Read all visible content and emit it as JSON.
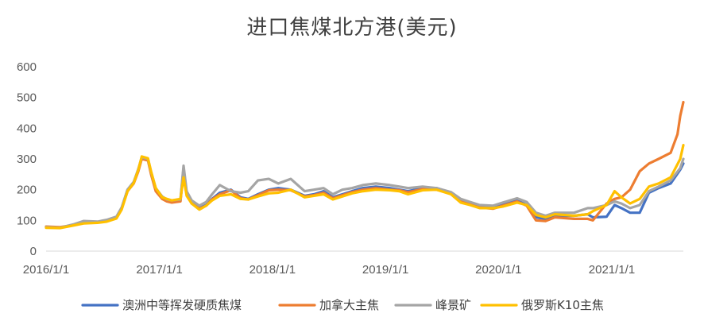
{
  "chart_data": {
    "type": "line",
    "title": "进口焦煤北方港(美元)",
    "xlabel": "",
    "ylabel": "",
    "ylim": [
      0,
      600
    ],
    "yticks": [
      0,
      100,
      200,
      300,
      400,
      500,
      600
    ],
    "xticks": [
      "2016/1/1",
      "2017/1/1",
      "2018/1/1",
      "2019/1/1",
      "2020/1/1",
      "2021/1/1"
    ],
    "x_range": [
      "2016-01-01",
      "2021-08-20"
    ],
    "grid": false,
    "legend_position": "bottom",
    "series": [
      {
        "name": "澳洲中等挥发硬质焦煤",
        "color": "#4472C4",
        "points": [
          [
            "2016-01-01",
            78
          ],
          [
            "2016-02-15",
            76
          ],
          [
            "2016-04-01",
            85
          ],
          [
            "2016-05-01",
            97
          ],
          [
            "2016-06-15",
            95
          ],
          [
            "2016-07-15",
            100
          ],
          [
            "2016-08-15",
            110
          ],
          [
            "2016-09-01",
            140
          ],
          [
            "2016-09-20",
            200
          ],
          [
            "2016-10-10",
            225
          ],
          [
            "2016-10-25",
            265
          ],
          [
            "2016-11-05",
            305
          ],
          [
            "2016-11-25",
            300
          ],
          [
            "2016-12-05",
            255
          ],
          [
            "2016-12-20",
            200
          ],
          [
            "2017-01-10",
            175
          ],
          [
            "2017-01-25",
            165
          ],
          [
            "2017-02-10",
            160
          ],
          [
            "2017-03-10",
            165
          ],
          [
            "2017-03-20",
            270
          ],
          [
            "2017-03-30",
            190
          ],
          [
            "2017-04-15",
            160
          ],
          [
            "2017-05-10",
            140
          ],
          [
            "2017-06-01",
            150
          ],
          [
            "2017-06-20",
            170
          ],
          [
            "2017-07-15",
            190
          ],
          [
            "2017-08-20",
            200
          ],
          [
            "2017-09-20",
            175
          ],
          [
            "2017-10-15",
            170
          ],
          [
            "2017-11-15",
            185
          ],
          [
            "2017-12-20",
            200
          ],
          [
            "2018-01-20",
            205
          ],
          [
            "2018-03-01",
            200
          ],
          [
            "2018-04-15",
            180
          ],
          [
            "2018-05-15",
            185
          ],
          [
            "2018-06-15",
            195
          ],
          [
            "2018-07-15",
            175
          ],
          [
            "2018-08-15",
            185
          ],
          [
            "2018-09-15",
            195
          ],
          [
            "2018-10-20",
            205
          ],
          [
            "2018-12-01",
            210
          ],
          [
            "2019-01-15",
            205
          ],
          [
            "2019-02-15",
            200
          ],
          [
            "2019-03-15",
            195
          ],
          [
            "2019-05-01",
            205
          ],
          [
            "2019-06-15",
            205
          ],
          [
            "2019-08-01",
            190
          ],
          [
            "2019-09-01",
            165
          ],
          [
            "2019-10-01",
            155
          ],
          [
            "2019-11-01",
            145
          ],
          [
            "2019-12-15",
            140
          ],
          [
            "2020-01-15",
            150
          ],
          [
            "2020-03-01",
            165
          ],
          [
            "2020-04-01",
            150
          ],
          [
            "2020-05-01",
            110
          ],
          [
            "2020-06-01",
            105
          ],
          [
            "2020-07-01",
            115
          ],
          [
            "2020-09-01",
            115
          ],
          [
            "2020-10-15",
            120
          ],
          [
            "2020-11-01",
            110
          ],
          [
            "2020-12-15",
            112
          ],
          [
            "2021-01-10",
            150
          ],
          [
            "2021-02-01",
            140
          ],
          [
            "2021-03-01",
            125
          ],
          [
            "2021-04-01",
            125
          ],
          [
            "2021-05-01",
            190
          ],
          [
            "2021-06-01",
            205
          ],
          [
            "2021-07-10",
            220
          ],
          [
            "2021-08-10",
            265
          ],
          [
            "2021-08-20",
            285
          ]
        ]
      },
      {
        "name": "加拿大主焦",
        "color": "#ED7D31",
        "points": [
          [
            "2016-01-01",
            80
          ],
          [
            "2016-02-15",
            78
          ],
          [
            "2016-04-01",
            85
          ],
          [
            "2016-05-01",
            95
          ],
          [
            "2016-06-15",
            93
          ],
          [
            "2016-07-15",
            98
          ],
          [
            "2016-08-15",
            108
          ],
          [
            "2016-09-01",
            138
          ],
          [
            "2016-09-20",
            195
          ],
          [
            "2016-10-10",
            220
          ],
          [
            "2016-10-25",
            260
          ],
          [
            "2016-11-05",
            300
          ],
          [
            "2016-11-25",
            295
          ],
          [
            "2016-12-05",
            250
          ],
          [
            "2016-12-20",
            195
          ],
          [
            "2017-01-10",
            170
          ],
          [
            "2017-01-25",
            162
          ],
          [
            "2017-02-10",
            158
          ],
          [
            "2017-03-10",
            162
          ],
          [
            "2017-03-20",
            260
          ],
          [
            "2017-03-30",
            185
          ],
          [
            "2017-04-15",
            155
          ],
          [
            "2017-05-10",
            138
          ],
          [
            "2017-06-01",
            148
          ],
          [
            "2017-06-20",
            168
          ],
          [
            "2017-07-15",
            185
          ],
          [
            "2017-08-20",
            198
          ],
          [
            "2017-09-20",
            172
          ],
          [
            "2017-10-15",
            168
          ],
          [
            "2017-11-15",
            182
          ],
          [
            "2017-12-20",
            198
          ],
          [
            "2018-01-20",
            200
          ],
          [
            "2018-03-01",
            198
          ],
          [
            "2018-04-15",
            178
          ],
          [
            "2018-05-15",
            182
          ],
          [
            "2018-06-15",
            190
          ],
          [
            "2018-07-15",
            172
          ],
          [
            "2018-08-15",
            182
          ],
          [
            "2018-09-15",
            192
          ],
          [
            "2018-10-20",
            200
          ],
          [
            "2018-12-01",
            205
          ],
          [
            "2019-01-15",
            200
          ],
          [
            "2019-02-15",
            198
          ],
          [
            "2019-03-15",
            192
          ],
          [
            "2019-05-01",
            202
          ],
          [
            "2019-06-15",
            200
          ],
          [
            "2019-08-01",
            188
          ],
          [
            "2019-09-01",
            162
          ],
          [
            "2019-10-01",
            152
          ],
          [
            "2019-11-01",
            142
          ],
          [
            "2019-12-15",
            138
          ],
          [
            "2020-01-15",
            148
          ],
          [
            "2020-03-01",
            162
          ],
          [
            "2020-04-01",
            148
          ],
          [
            "2020-05-01",
            100
          ],
          [
            "2020-06-01",
            98
          ],
          [
            "2020-07-01",
            110
          ],
          [
            "2020-09-01",
            105
          ],
          [
            "2020-10-15",
            105
          ],
          [
            "2020-11-01",
            100
          ],
          [
            "2020-12-15",
            155
          ],
          [
            "2021-01-10",
            170
          ],
          [
            "2021-02-01",
            175
          ],
          [
            "2021-03-01",
            200
          ],
          [
            "2021-04-01",
            260
          ],
          [
            "2021-05-01",
            285
          ],
          [
            "2021-06-01",
            300
          ],
          [
            "2021-07-10",
            320
          ],
          [
            "2021-08-01",
            380
          ],
          [
            "2021-08-10",
            440
          ],
          [
            "2021-08-20",
            485
          ]
        ]
      },
      {
        "name": "峰景矿",
        "color": "#A5A5A5",
        "points": [
          [
            "2016-01-01",
            78
          ],
          [
            "2016-02-15",
            76
          ],
          [
            "2016-04-01",
            88
          ],
          [
            "2016-05-01",
            98
          ],
          [
            "2016-06-15",
            96
          ],
          [
            "2016-07-15",
            102
          ],
          [
            "2016-08-15",
            112
          ],
          [
            "2016-09-01",
            142
          ],
          [
            "2016-09-20",
            200
          ],
          [
            "2016-10-10",
            225
          ],
          [
            "2016-10-25",
            268
          ],
          [
            "2016-11-05",
            305
          ],
          [
            "2016-11-25",
            300
          ],
          [
            "2016-12-05",
            258
          ],
          [
            "2016-12-20",
            205
          ],
          [
            "2017-01-10",
            178
          ],
          [
            "2017-01-25",
            168
          ],
          [
            "2017-02-10",
            165
          ],
          [
            "2017-03-10",
            168
          ],
          [
            "2017-03-20",
            278
          ],
          [
            "2017-03-30",
            195
          ],
          [
            "2017-04-15",
            165
          ],
          [
            "2017-05-10",
            148
          ],
          [
            "2017-06-01",
            160
          ],
          [
            "2017-06-20",
            185
          ],
          [
            "2017-07-15",
            215
          ],
          [
            "2017-08-20",
            195
          ],
          [
            "2017-09-20",
            190
          ],
          [
            "2017-10-15",
            195
          ],
          [
            "2017-11-15",
            230
          ],
          [
            "2017-12-20",
            235
          ],
          [
            "2018-01-20",
            220
          ],
          [
            "2018-03-01",
            235
          ],
          [
            "2018-04-15",
            195
          ],
          [
            "2018-05-15",
            200
          ],
          [
            "2018-06-15",
            205
          ],
          [
            "2018-07-15",
            185
          ],
          [
            "2018-08-15",
            200
          ],
          [
            "2018-09-15",
            205
          ],
          [
            "2018-10-20",
            215
          ],
          [
            "2018-12-01",
            220
          ],
          [
            "2019-01-15",
            215
          ],
          [
            "2019-02-15",
            210
          ],
          [
            "2019-03-15",
            205
          ],
          [
            "2019-05-01",
            210
          ],
          [
            "2019-06-15",
            205
          ],
          [
            "2019-08-01",
            192
          ],
          [
            "2019-09-01",
            170
          ],
          [
            "2019-10-01",
            160
          ],
          [
            "2019-11-01",
            150
          ],
          [
            "2019-12-15",
            148
          ],
          [
            "2020-01-15",
            158
          ],
          [
            "2020-03-01",
            172
          ],
          [
            "2020-04-01",
            160
          ],
          [
            "2020-05-01",
            125
          ],
          [
            "2020-06-01",
            115
          ],
          [
            "2020-07-01",
            125
          ],
          [
            "2020-09-01",
            125
          ],
          [
            "2020-10-15",
            140
          ],
          [
            "2020-11-01",
            140
          ],
          [
            "2020-12-15",
            150
          ],
          [
            "2021-01-10",
            162
          ],
          [
            "2021-02-01",
            155
          ],
          [
            "2021-03-01",
            140
          ],
          [
            "2021-04-01",
            150
          ],
          [
            "2021-05-01",
            195
          ],
          [
            "2021-06-01",
            210
          ],
          [
            "2021-07-10",
            230
          ],
          [
            "2021-08-10",
            270
          ],
          [
            "2021-08-20",
            300
          ]
        ]
      },
      {
        "name": "俄罗斯K10主焦",
        "color": "#FFC000",
        "points": [
          [
            "2016-01-01",
            76
          ],
          [
            "2016-02-15",
            75
          ],
          [
            "2016-04-01",
            84
          ],
          [
            "2016-05-01",
            90
          ],
          [
            "2016-06-15",
            92
          ],
          [
            "2016-07-15",
            96
          ],
          [
            "2016-08-15",
            106
          ],
          [
            "2016-09-01",
            135
          ],
          [
            "2016-09-20",
            195
          ],
          [
            "2016-10-10",
            222
          ],
          [
            "2016-10-25",
            265
          ],
          [
            "2016-11-05",
            308
          ],
          [
            "2016-11-25",
            302
          ],
          [
            "2016-12-05",
            260
          ],
          [
            "2016-12-20",
            205
          ],
          [
            "2017-01-10",
            175
          ],
          [
            "2017-01-25",
            170
          ],
          [
            "2017-02-10",
            165
          ],
          [
            "2017-03-10",
            170
          ],
          [
            "2017-03-20",
            240
          ],
          [
            "2017-03-30",
            180
          ],
          [
            "2017-04-15",
            155
          ],
          [
            "2017-05-10",
            135
          ],
          [
            "2017-06-01",
            148
          ],
          [
            "2017-06-20",
            165
          ],
          [
            "2017-07-15",
            180
          ],
          [
            "2017-08-20",
            185
          ],
          [
            "2017-09-20",
            170
          ],
          [
            "2017-10-15",
            168
          ],
          [
            "2017-11-15",
            178
          ],
          [
            "2017-12-20",
            188
          ],
          [
            "2018-01-20",
            190
          ],
          [
            "2018-03-01",
            200
          ],
          [
            "2018-04-15",
            175
          ],
          [
            "2018-05-15",
            180
          ],
          [
            "2018-06-15",
            185
          ],
          [
            "2018-07-15",
            168
          ],
          [
            "2018-08-15",
            178
          ],
          [
            "2018-09-15",
            188
          ],
          [
            "2018-10-20",
            195
          ],
          [
            "2018-12-01",
            200
          ],
          [
            "2019-01-15",
            198
          ],
          [
            "2019-02-15",
            195
          ],
          [
            "2019-03-15",
            185
          ],
          [
            "2019-05-01",
            198
          ],
          [
            "2019-06-15",
            200
          ],
          [
            "2019-08-01",
            185
          ],
          [
            "2019-09-01",
            158
          ],
          [
            "2019-10-01",
            150
          ],
          [
            "2019-11-01",
            140
          ],
          [
            "2019-12-15",
            140
          ],
          [
            "2020-01-15",
            145
          ],
          [
            "2020-03-01",
            158
          ],
          [
            "2020-04-01",
            150
          ],
          [
            "2020-05-01",
            118
          ],
          [
            "2020-06-01",
            110
          ],
          [
            "2020-07-01",
            120
          ],
          [
            "2020-09-01",
            115
          ],
          [
            "2020-10-15",
            120
          ],
          [
            "2020-11-01",
            130
          ],
          [
            "2020-12-15",
            150
          ],
          [
            "2021-01-10",
            195
          ],
          [
            "2021-02-01",
            175
          ],
          [
            "2021-03-01",
            155
          ],
          [
            "2021-04-01",
            170
          ],
          [
            "2021-05-01",
            210
          ],
          [
            "2021-06-01",
            220
          ],
          [
            "2021-07-10",
            240
          ],
          [
            "2021-08-10",
            300
          ],
          [
            "2021-08-20",
            345
          ]
        ]
      }
    ]
  }
}
